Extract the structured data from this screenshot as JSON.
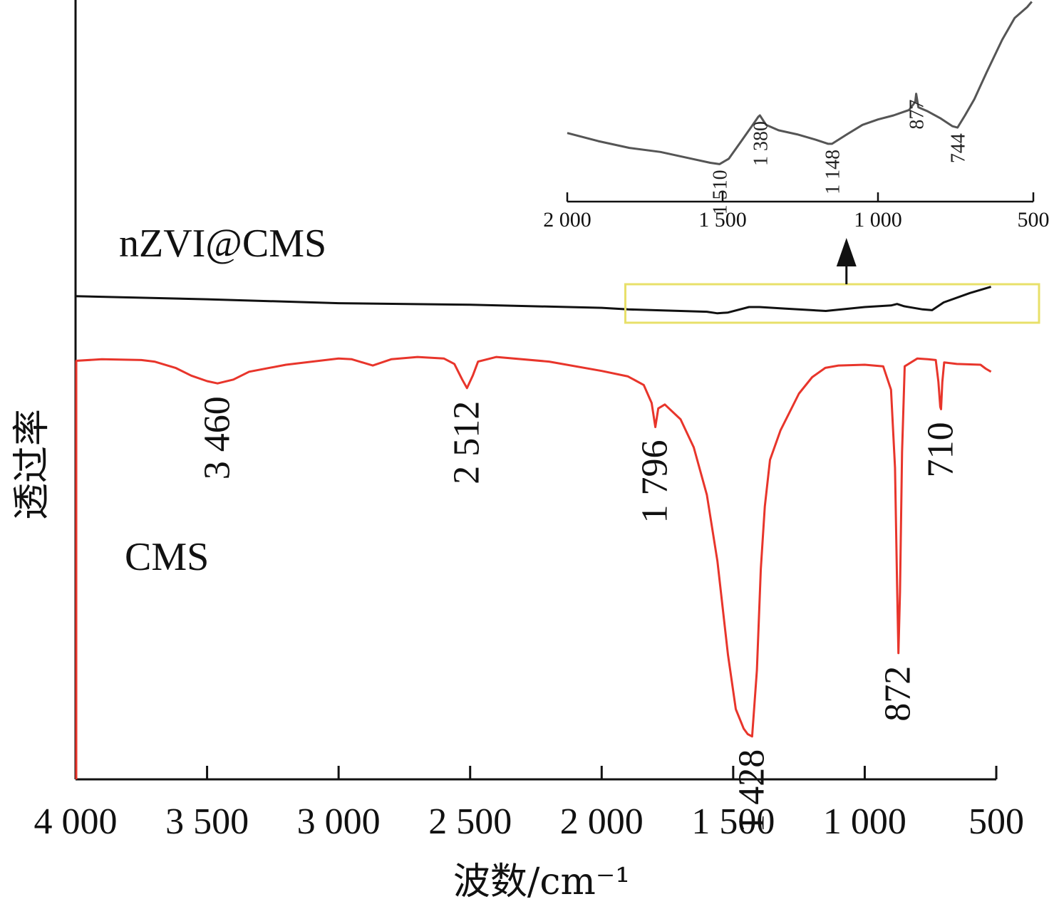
{
  "chart_data": [
    {
      "type": "line",
      "panel": "main",
      "xlabel": "波数/cm⁻¹",
      "ylabel": "透过率",
      "x_reversed": true,
      "xlim": [
        4000,
        500
      ],
      "ylim": [
        0,
        100
      ],
      "x_ticks": [
        4000,
        3500,
        3000,
        2500,
        2000,
        1500,
        1000,
        500
      ],
      "x_tick_labels": [
        "4 000",
        "3 500",
        "3 000",
        "2 500",
        "2 000",
        "1 500",
        "1 000",
        "500"
      ],
      "y_ticks_shown": false,
      "series": [
        {
          "name": "nZVI@CMS",
          "color": "#111111",
          "points": [
            [
              4000,
              62.0
            ],
            [
              3500,
              61.6
            ],
            [
              3000,
              61.1
            ],
            [
              2500,
              60.9
            ],
            [
              2000,
              60.5
            ],
            [
              1900,
              60.3
            ],
            [
              1700,
              60.1
            ],
            [
              1600,
              60.0
            ],
            [
              1560,
              59.8
            ],
            [
              1520,
              59.9
            ],
            [
              1440,
              60.6
            ],
            [
              1400,
              60.6
            ],
            [
              1300,
              60.4
            ],
            [
              1200,
              60.2
            ],
            [
              1148,
              60.1
            ],
            [
              1000,
              60.6
            ],
            [
              900,
              60.8
            ],
            [
              877,
              61.0
            ],
            [
              850,
              60.7
            ],
            [
              780,
              60.3
            ],
            [
              744,
              60.2
            ],
            [
              700,
              61.2
            ],
            [
              600,
              62.4
            ],
            [
              520,
              63.2
            ]
          ]
        },
        {
          "name": "CMS",
          "color": "#e8352b",
          "points": [
            [
              4000,
              53.7
            ],
            [
              3900,
              53.9
            ],
            [
              3750,
              53.8
            ],
            [
              3700,
              53.6
            ],
            [
              3620,
              52.8
            ],
            [
              3560,
              51.8
            ],
            [
              3500,
              51.1
            ],
            [
              3460,
              50.8
            ],
            [
              3400,
              51.3
            ],
            [
              3340,
              52.3
            ],
            [
              3200,
              53.2
            ],
            [
              3000,
              54.0
            ],
            [
              2950,
              53.9
            ],
            [
              2870,
              53.1
            ],
            [
              2800,
              53.9
            ],
            [
              2700,
              54.2
            ],
            [
              2600,
              54.0
            ],
            [
              2560,
              53.3
            ],
            [
              2530,
              51.3
            ],
            [
              2512,
              50.2
            ],
            [
              2490,
              51.8
            ],
            [
              2470,
              53.6
            ],
            [
              2400,
              54.2
            ],
            [
              2200,
              53.6
            ],
            [
              2000,
              52.4
            ],
            [
              1900,
              51.7
            ],
            [
              1840,
              50.6
            ],
            [
              1810,
              48.3
            ],
            [
              1796,
              45.2
            ],
            [
              1785,
              47.6
            ],
            [
              1760,
              48.1
            ],
            [
              1700,
              46.2
            ],
            [
              1650,
              42.6
            ],
            [
              1600,
              36.5
            ],
            [
              1560,
              28.0
            ],
            [
              1520,
              16.0
            ],
            [
              1490,
              9.0
            ],
            [
              1460,
              6.5
            ],
            [
              1445,
              5.8
            ],
            [
              1428,
              5.5
            ],
            [
              1410,
              14.0
            ],
            [
              1395,
              27.0
            ],
            [
              1380,
              35.0
            ],
            [
              1360,
              41.0
            ],
            [
              1320,
              44.8
            ],
            [
              1250,
              49.5
            ],
            [
              1200,
              51.6
            ],
            [
              1150,
              52.8
            ],
            [
              1100,
              53.1
            ],
            [
              1000,
              53.2
            ],
            [
              930,
              53.0
            ],
            [
              900,
              50.0
            ],
            [
              885,
              40.0
            ],
            [
              877,
              25.0
            ],
            [
              872,
              16.2
            ],
            [
              866,
              24.0
            ],
            [
              858,
              42.0
            ],
            [
              848,
              53.0
            ],
            [
              800,
              54.0
            ],
            [
              760,
              53.9
            ],
            [
              730,
              53.8
            ],
            [
              720,
              51.0
            ],
            [
              713,
              47.8
            ],
            [
              710,
              47.5
            ],
            [
              705,
              51.0
            ],
            [
              698,
              53.5
            ],
            [
              650,
              53.3
            ],
            [
              560,
              53.2
            ],
            [
              540,
              52.7
            ],
            [
              520,
              52.3
            ]
          ]
        }
      ],
      "peak_labels_cms": [
        "3 460",
        "2 512",
        "1 796",
        "1 428",
        "872",
        "710"
      ],
      "peak_values_cms": [
        3460,
        2512,
        1796,
        1428,
        872,
        710
      ],
      "series_labels": [
        "nZVI@CMS",
        "CMS"
      ],
      "highlight_box": {
        "x_from": 1910,
        "x_to": 500,
        "color": "#e8e06a",
        "meaning": "zoomed region"
      }
    },
    {
      "type": "line",
      "panel": "inset",
      "x_reversed": true,
      "xlim": [
        2000,
        500
      ],
      "x_ticks": [
        2000,
        1500,
        1000,
        500
      ],
      "x_tick_labels": [
        "2 000",
        "1 500",
        "1 000",
        "500"
      ],
      "series": [
        {
          "name": "nZVI@CMS",
          "color": "#555555",
          "points": [
            [
              2000,
              53.5
            ],
            [
              1900,
              50.5
            ],
            [
              1800,
              48.0
            ],
            [
              1700,
              46.5
            ],
            [
              1600,
              44.0
            ],
            [
              1540,
              42.5
            ],
            [
              1510,
              42.0
            ],
            [
              1480,
              44.0
            ],
            [
              1440,
              50.5
            ],
            [
              1400,
              57.0
            ],
            [
              1385,
              59.5
            ],
            [
              1380,
              60.0
            ],
            [
              1360,
              56.5
            ],
            [
              1320,
              54.5
            ],
            [
              1260,
              53.0
            ],
            [
              1200,
              51.0
            ],
            [
              1160,
              49.5
            ],
            [
              1148,
              49.5
            ],
            [
              1100,
              53.0
            ],
            [
              1050,
              56.5
            ],
            [
              1000,
              58.5
            ],
            [
              950,
              60.0
            ],
            [
              900,
              62.0
            ],
            [
              880,
              65.0
            ],
            [
              877,
              68.0
            ],
            [
              870,
              63.0
            ],
            [
              840,
              61.5
            ],
            [
              800,
              59.0
            ],
            [
              760,
              56.0
            ],
            [
              744,
              55.5
            ],
            [
              720,
              60.0
            ],
            [
              690,
              66.0
            ],
            [
              650,
              76.0
            ],
            [
              600,
              88.0
            ],
            [
              560,
              96.0
            ],
            [
              520,
              100.0
            ],
            [
              505,
              102.0
            ]
          ]
        }
      ],
      "peak_labels": [
        "1 510",
        "1 380",
        "1 148",
        "877",
        "744"
      ],
      "peak_values": [
        1510,
        1380,
        1148,
        877,
        744
      ]
    }
  ]
}
